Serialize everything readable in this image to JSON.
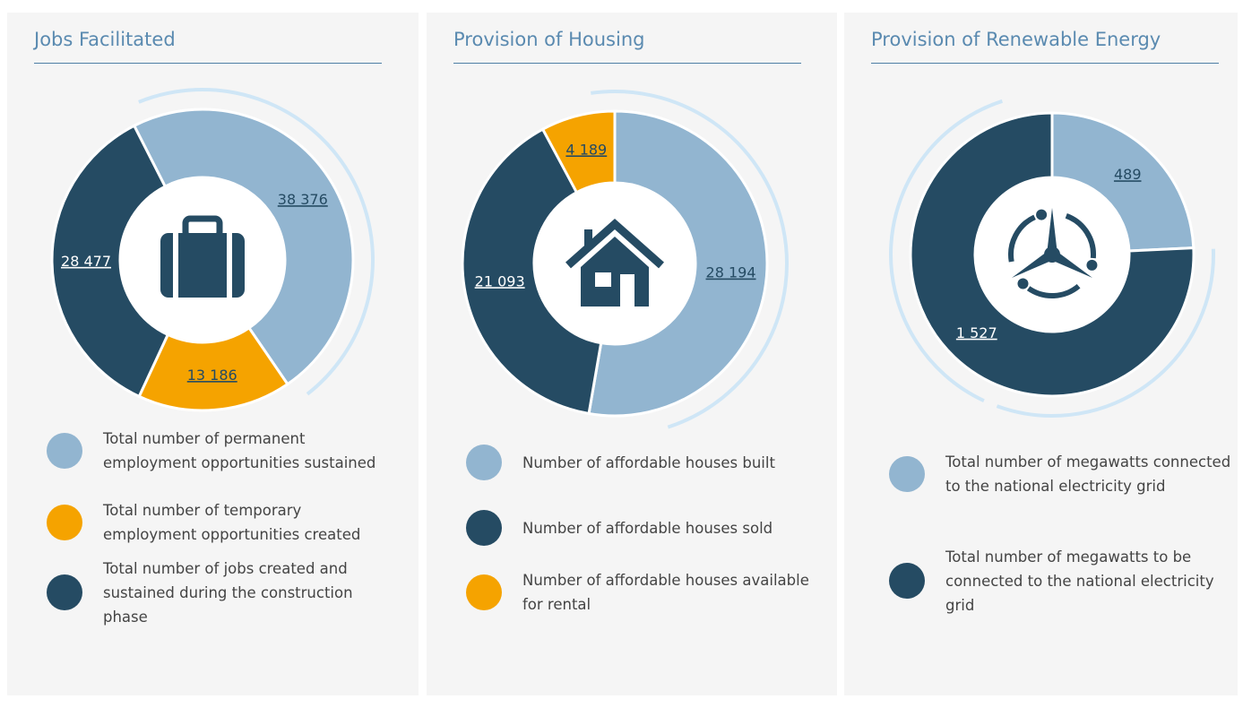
{
  "chart_data": [
    {
      "type": "pie",
      "title": "Jobs Facilitated",
      "categories": [
        "Total number of permanent employment opportunities sustained",
        "Total number of temporary employment opportunities created",
        "Total number of jobs created and sustained during the construction phase"
      ],
      "values": [
        38376,
        13186,
        28477
      ],
      "value_labels": [
        "38 376",
        "13 186",
        "28 477"
      ],
      "colors": [
        "#92b5d0",
        "#f5a300",
        "#254b63"
      ]
    },
    {
      "type": "pie",
      "title": "Provision of Housing",
      "categories": [
        "Number of affordable houses built",
        "Number of affordable houses sold",
        "Number of affordable houses available for rental"
      ],
      "values": [
        28194,
        21093,
        4189
      ],
      "value_labels": [
        "28 194",
        "21 093",
        "4 189"
      ],
      "colors": [
        "#92b5d0",
        "#254b63",
        "#f5a300"
      ]
    },
    {
      "type": "pie",
      "title": "Provision of Renewable Energy",
      "categories": [
        "Total number of megawatts connected to the national electricity grid",
        "Total number of megawatts to be connected to the national electricity grid"
      ],
      "values": [
        489,
        1527
      ],
      "value_labels": [
        "489",
        "1 527"
      ],
      "colors": [
        "#92b5d0",
        "#254b63"
      ]
    }
  ]
}
